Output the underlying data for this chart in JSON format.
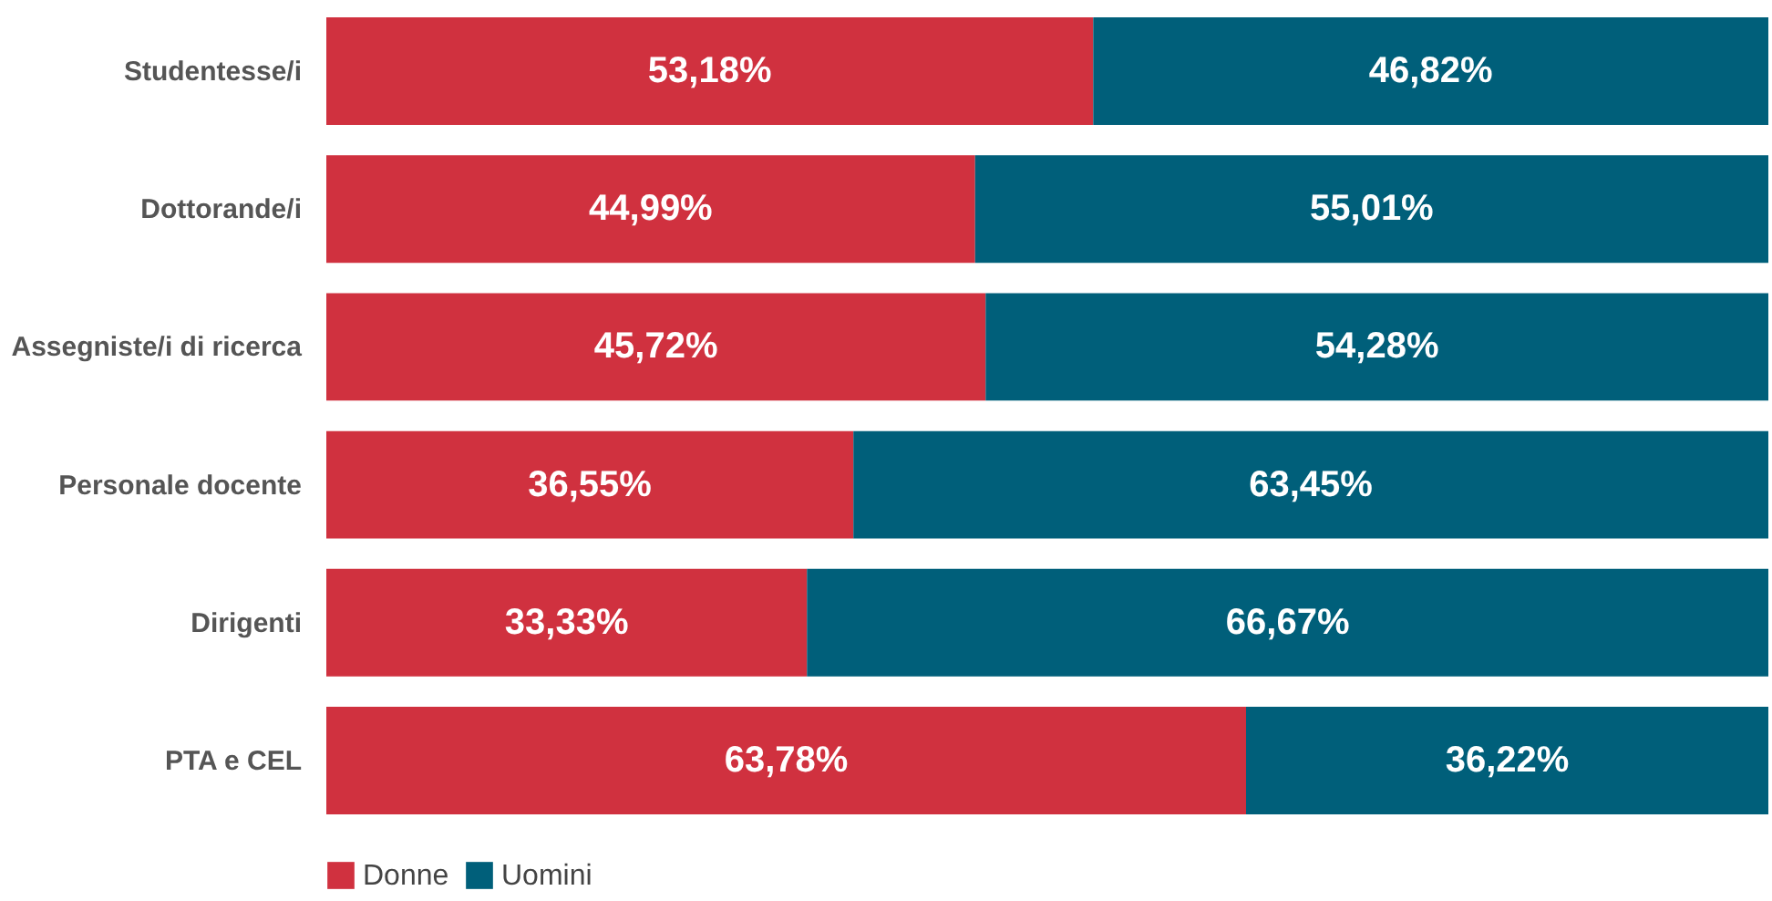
{
  "chart_data": {
    "type": "bar",
    "orientation": "horizontal",
    "stacked": true,
    "legend": "bottom left",
    "categories": [
      "Studentesse/i",
      "Dottorande/i",
      "Assegniste/i di ricerca",
      "Personale docente",
      "Dirigenti",
      "PTA e CEL"
    ],
    "series": [
      {
        "name": "Donne",
        "color": "#d0313f",
        "values": [
          53.18,
          44.99,
          45.72,
          36.55,
          33.33,
          63.78
        ],
        "value_labels": [
          "53,18%",
          "44,99%",
          "45,72%",
          "36,55%",
          "33,33%",
          "63,78%"
        ]
      },
      {
        "name": "Uomini",
        "color": "#005f7a",
        "values": [
          46.82,
          55.01,
          54.28,
          63.45,
          66.67,
          36.22
        ],
        "value_labels": [
          "46,82%",
          "55,01%",
          "54,28%",
          "63,45%",
          "66,67%",
          "36,22%"
        ]
      }
    ]
  }
}
